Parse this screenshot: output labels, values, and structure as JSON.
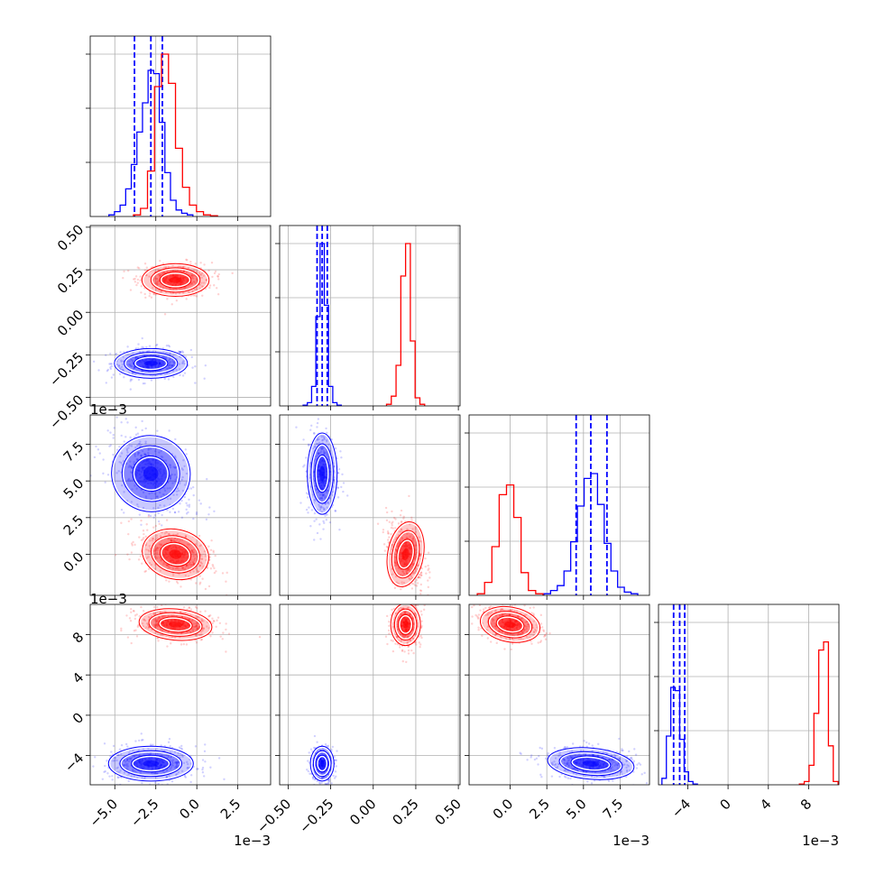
{
  "chart_data": {
    "type": "corner",
    "title": "",
    "n_params": 4,
    "grid": true,
    "colors": {
      "series_a": "#0000ff",
      "series_b": "#ff0000"
    },
    "axes": [
      {
        "range": [
          -0.0065,
          0.0045
        ],
        "ticks": [
          -0.005,
          -0.0025,
          0.0,
          0.0025
        ],
        "tick_labels": [
          "−5.0",
          "−2.5",
          "0.0",
          "2.5"
        ],
        "offset_label": "1e−3"
      },
      {
        "range": [
          -0.55,
          0.51
        ],
        "ticks": [
          -0.5,
          -0.25,
          0.0,
          0.25,
          0.5
        ],
        "tick_labels": [
          "−0.50",
          "−0.25",
          "0.00",
          "0.25",
          "0.50"
        ],
        "offset_label": ""
      },
      {
        "range": [
          -0.0028,
          0.0095
        ],
        "ticks": [
          0.0,
          0.0025,
          0.005,
          0.0075
        ],
        "tick_labels": [
          "0.0",
          "2.5",
          "5.0",
          "7.5"
        ],
        "offset_label": "1e−3"
      },
      {
        "range": [
          -0.0069,
          0.011
        ],
        "ticks": [
          -0.004,
          0.0,
          0.004,
          0.008
        ],
        "tick_labels": [
          "−4",
          "0",
          "4",
          "8"
        ],
        "offset_label": "1e−3"
      }
    ],
    "series": [
      {
        "key": "series_a",
        "color": "#0000ff",
        "means": [
          -0.0028,
          -0.3,
          0.0055,
          -0.0048
        ],
        "stds": [
          0.0008,
          0.035,
          0.001,
          0.00055
        ],
        "quantile_lines": [
          [
            -0.0038,
            -0.0028,
            -0.0021
          ],
          [
            -0.33,
            -0.3,
            -0.27
          ],
          [
            0.0045,
            0.0055,
            0.0066
          ],
          [
            -0.0054,
            -0.0048,
            -0.0043
          ]
        ],
        "hist_counts": [
          [
            0.01,
            0.03,
            0.07,
            0.17,
            0.32,
            0.52,
            0.7,
            0.9,
            0.88,
            0.58,
            0.27,
            0.1,
            0.04,
            0.02,
            0.01
          ],
          [
            0.005,
            0.02,
            0.12,
            0.55,
            1.0,
            0.62,
            0.12,
            0.02,
            0.005
          ],
          [
            0.01,
            0.03,
            0.06,
            0.15,
            0.33,
            0.55,
            0.72,
            0.75,
            0.56,
            0.32,
            0.15,
            0.05,
            0.02,
            0.01
          ],
          [
            0.04,
            0.3,
            0.6,
            0.58,
            0.28,
            0.08,
            0.02,
            0.005
          ]
        ]
      },
      {
        "key": "series_b",
        "color": "#ff0000",
        "means": [
          -0.0013,
          0.19,
          0.0,
          0.009
        ],
        "stds": [
          0.0008,
          0.035,
          0.0007,
          0.0006
        ],
        "quantile_lines": [],
        "hist_counts": [
          [
            0.01,
            0.05,
            0.28,
            0.8,
            1.0,
            0.82,
            0.42,
            0.18,
            0.07,
            0.03,
            0.01,
            0.005
          ],
          [
            0.01,
            0.06,
            0.25,
            0.8,
            1.0,
            0.4,
            0.05,
            0.01
          ],
          [
            0.01,
            0.08,
            0.3,
            0.62,
            0.68,
            0.48,
            0.14,
            0.03,
            0.01
          ],
          [
            0.005,
            0.02,
            0.12,
            0.44,
            0.83,
            0.88,
            0.24,
            0.02
          ]
        ]
      }
    ],
    "blob_shapes": {
      "1-0": [
        [
          0.0012,
          0.045,
          0.0
        ],
        [
          0.0011,
          0.05,
          0.0
        ]
      ],
      "2-0": [
        [
          0.0013,
          0.0014,
          -0.5
        ],
        [
          0.0011,
          0.0009,
          -0.4
        ]
      ],
      "2-1": [
        [
          0.045,
          0.0015,
          0.0
        ],
        [
          0.055,
          0.0012,
          -0.3
        ]
      ],
      "3-0": [
        [
          0.0014,
          0.0009,
          0.0
        ],
        [
          0.0012,
          0.0008,
          -0.15
        ]
      ],
      "3-1": [
        [
          0.035,
          0.0009,
          0.0
        ],
        [
          0.045,
          0.0011,
          0.0
        ]
      ],
      "3-2": [
        [
          0.0016,
          0.0008,
          -0.15
        ],
        [
          0.0011,
          0.0009,
          -0.3
        ]
      ]
    }
  }
}
